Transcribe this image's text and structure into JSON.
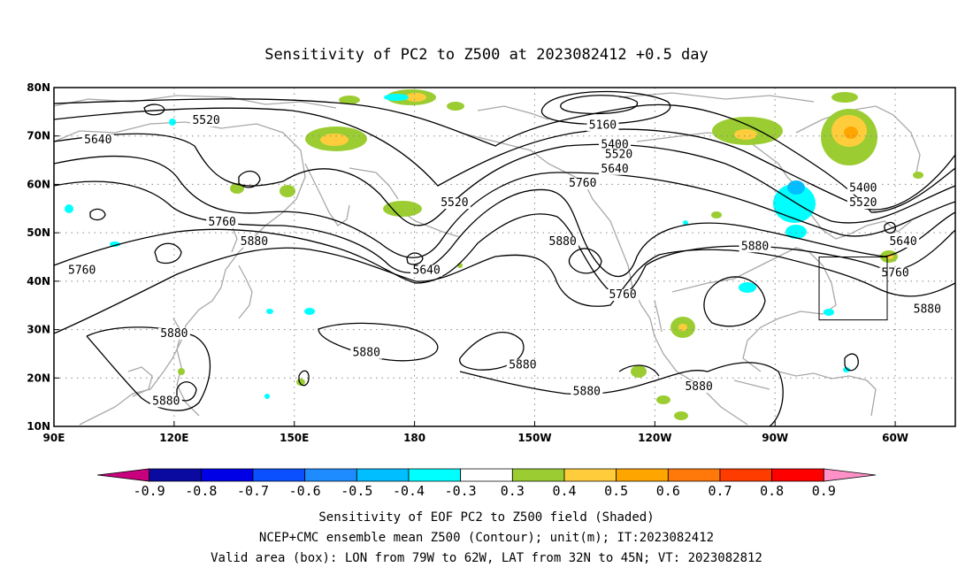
{
  "title": "Sensitivity of PC2 to Z500 at 2023082412 +0.5 day",
  "map": {
    "lon_ticks": [
      {
        "lon": 90,
        "label": "90E"
      },
      {
        "lon": 120,
        "label": "120E"
      },
      {
        "lon": 150,
        "label": "150E"
      },
      {
        "lon": 180,
        "label": "180"
      },
      {
        "lon": 210,
        "label": "150W"
      },
      {
        "lon": 240,
        "label": "120W"
      },
      {
        "lon": 270,
        "label": "90W"
      },
      {
        "lon": 300,
        "label": "60W"
      }
    ],
    "lat_ticks": [
      {
        "lat": 80,
        "label": "80N"
      },
      {
        "lat": 70,
        "label": "70N"
      },
      {
        "lat": 60,
        "label": "60N"
      },
      {
        "lat": 50,
        "label": "50N"
      },
      {
        "lat": 40,
        "label": "40N"
      },
      {
        "lat": 30,
        "label": "30N"
      },
      {
        "lat": 20,
        "label": "20N"
      },
      {
        "lat": 10,
        "label": "10N"
      }
    ],
    "lon_range": [
      90,
      315
    ],
    "lat_range": [
      10,
      80
    ],
    "grid": "dotted",
    "contour_labels": [
      {
        "text": "5520",
        "lon": 128,
        "lat": 72.5
      },
      {
        "text": "5640",
        "lon": 101,
        "lat": 68.5
      },
      {
        "text": "5160",
        "lon": 227,
        "lat": 71.5
      },
      {
        "text": "5400",
        "lon": 230,
        "lat": 67.5
      },
      {
        "text": "5520",
        "lon": 231,
        "lat": 65.5
      },
      {
        "text": "5640",
        "lon": 230,
        "lat": 62.5
      },
      {
        "text": "5760",
        "lon": 222,
        "lat": 59.5
      },
      {
        "text": "5520",
        "lon": 190,
        "lat": 55.5
      },
      {
        "text": "5400",
        "lon": 292,
        "lat": 58.5
      },
      {
        "text": "5520",
        "lon": 292,
        "lat": 55.5
      },
      {
        "text": "5760",
        "lon": 132,
        "lat": 51.5
      },
      {
        "text": "5880",
        "lon": 140,
        "lat": 47.5
      },
      {
        "text": "5640",
        "lon": 183,
        "lat": 41.5
      },
      {
        "text": "5880",
        "lon": 217,
        "lat": 47.5
      },
      {
        "text": "5760",
        "lon": 97,
        "lat": 41.5
      },
      {
        "text": "5760",
        "lon": 232,
        "lat": 36.5
      },
      {
        "text": "5880",
        "lon": 265,
        "lat": 46.5
      },
      {
        "text": "5640",
        "lon": 302,
        "lat": 47.5
      },
      {
        "text": "5760",
        "lon": 300,
        "lat": 41
      },
      {
        "text": "5880",
        "lon": 308,
        "lat": 33.5
      },
      {
        "text": "5880",
        "lon": 120,
        "lat": 28.5
      },
      {
        "text": "5880",
        "lon": 168,
        "lat": 24.5
      },
      {
        "text": "5880",
        "lon": 207,
        "lat": 22
      },
      {
        "text": "5880",
        "lon": 223,
        "lat": 16.5
      },
      {
        "text": "5880",
        "lon": 251,
        "lat": 17.5
      },
      {
        "text": "5880",
        "lon": 118,
        "lat": 14.5
      }
    ],
    "valid_box": {
      "lon_min": 281,
      "lon_max": 298,
      "lat_min": 32,
      "lat_max": 45
    }
  },
  "colorbar": {
    "colors": [
      "#c8007e",
      "#0a0aa0",
      "#0000e6",
      "#0a50ff",
      "#1e8cff",
      "#00beff",
      "#00ffff",
      "#ffffff",
      "#9bcd32",
      "#ffcd3c",
      "#ffa500",
      "#ff780a",
      "#ff3c00",
      "#ff0000",
      "#ff91c8"
    ],
    "labels": [
      "-0.9",
      "-0.8",
      "-0.7",
      "-0.6",
      "-0.5",
      "-0.4",
      "-0.3",
      "0.3",
      "0.4",
      "0.5",
      "0.6",
      "0.7",
      "0.8",
      "0.9"
    ]
  },
  "captions": [
    "Sensitivity of EOF PC2 to Z500 field (Shaded)",
    "NCEP+CMC ensemble mean Z500 (Contour); unit(m); IT:2023082412",
    "Valid area (box): LON from 79W to 62W, LAT from 32N to 45N; VT: 2023082812"
  ]
}
